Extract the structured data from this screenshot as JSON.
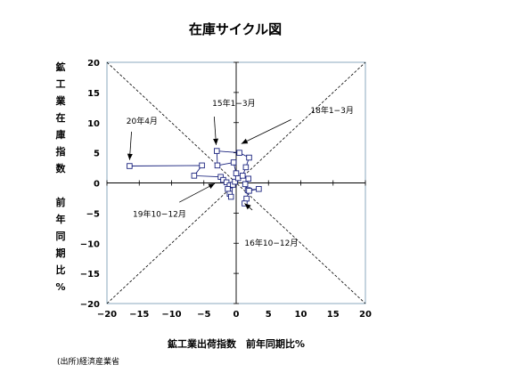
{
  "chart_data": {
    "type": "scatter",
    "title": "在庫サイクル図",
    "xlabel": "鉱工業出荷指数　前年同期比%",
    "ylabel_chars": [
      "鉱",
      "工",
      "業",
      "在",
      "庫",
      "指",
      "数",
      "",
      "前",
      "年",
      "同",
      "期",
      "比",
      "%"
    ],
    "xlim": [
      -20,
      20
    ],
    "ylim": [
      -20,
      20
    ],
    "x_ticks": [
      "−20",
      "−15",
      "−10",
      "−5",
      "0",
      "5",
      "10",
      "15",
      "20"
    ],
    "y_ticks": [
      "20",
      "15",
      "10",
      "5",
      "0",
      "−5",
      "−10",
      "−15",
      "−20"
    ],
    "tick_step": 5,
    "grid": false,
    "reference_lines": "diagonals y=x and y=-x (dashed)",
    "series": [
      {
        "points": [
          {
            "x": -16.5,
            "y": 2.8
          },
          {
            "x": -5.3,
            "y": 2.9
          },
          {
            "x": -6.5,
            "y": 1.2
          },
          {
            "x": -2.4,
            "y": 1.0
          },
          {
            "x": -2.0,
            "y": 0.5
          },
          {
            "x": -1.5,
            "y": 0.1
          },
          {
            "x": -1.0,
            "y": -0.4
          },
          {
            "x": -1.3,
            "y": -1.0
          },
          {
            "x": -1.0,
            "y": -1.8
          },
          {
            "x": -0.8,
            "y": -2.3
          },
          {
            "x": -0.5,
            "y": -0.3
          },
          {
            "x": -0.2,
            "y": 0.2
          },
          {
            "x": 0.3,
            "y": 0.8
          },
          {
            "x": 0.0,
            "y": 1.6
          },
          {
            "x": -0.4,
            "y": 3.4
          },
          {
            "x": -2.9,
            "y": 2.9
          },
          {
            "x": -3.0,
            "y": 5.3
          },
          {
            "x": 0.5,
            "y": 5.0
          },
          {
            "x": 2.0,
            "y": 4.2
          },
          {
            "x": 1.5,
            "y": 2.6
          },
          {
            "x": 1.0,
            "y": 1.2
          },
          {
            "x": 1.9,
            "y": 0.7
          },
          {
            "x": 1.4,
            "y": -0.2
          },
          {
            "x": 1.8,
            "y": -1.2
          },
          {
            "x": 3.5,
            "y": -1.0
          },
          {
            "x": 2.0,
            "y": -1.3
          },
          {
            "x": 1.6,
            "y": -2.6
          },
          {
            "x": 1.3,
            "y": -3.4
          }
        ]
      }
    ],
    "annotations": [
      {
        "text": "20年4月",
        "x": -17,
        "y": 9.8,
        "ax": -16.2,
        "ay": 8.5,
        "tx": -16.5,
        "ty": 3.8
      },
      {
        "text": "15年1−3月",
        "x": -3.7,
        "y": 12.8,
        "ax": -3.4,
        "ay": 11.0,
        "tx": -3.1,
        "ty": 6.3
      },
      {
        "text": "18年1−3月",
        "x": 11.5,
        "y": 11.6,
        "ax": 8.5,
        "ay": 10.5,
        "tx": 0.8,
        "ty": 6.5
      },
      {
        "text": "19年10−12月",
        "x": -16,
        "y": -5.6,
        "ax": -8.8,
        "ay": -3.2,
        "tx": -3.3,
        "ty": -0.1
      },
      {
        "text": "16年10−12月",
        "x": 1.3,
        "y": -10.4,
        "ax": 2.5,
        "ay": -4.5,
        "tx": 1.3,
        "ty": -3.4
      }
    ],
    "source": "(出所)経済産業省"
  }
}
